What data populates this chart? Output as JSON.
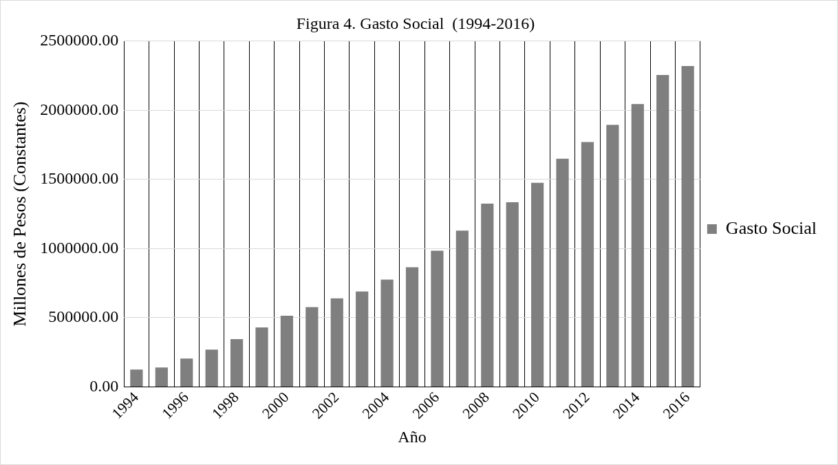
{
  "chart_data": {
    "type": "bar",
    "title": "Figura 4. Gasto Social  (1994-2016)",
    "xlabel": "Año",
    "ylabel": "Millones de Pesos (Constantes)",
    "categories": [
      "1994",
      null,
      "1996",
      null,
      "1998",
      null,
      "2000",
      null,
      "2002",
      null,
      "2004",
      null,
      "2006",
      null,
      "2008",
      null,
      "2010",
      null,
      "2012",
      null,
      "2014",
      null,
      "2016"
    ],
    "series": [
      {
        "name": "Gasto Social",
        "color": "#7f7f7f",
        "values": [
          125000,
          140000,
          205000,
          270000,
          345000,
          430000,
          515000,
          577000,
          640000,
          690000,
          775000,
          865000,
          985000,
          1130000,
          1325000,
          1335000,
          1475000,
          1650000,
          1770000,
          1895000,
          2045000,
          2255000,
          2320000
        ]
      }
    ],
    "ylim": [
      0,
      2500000
    ],
    "yticks": [
      {
        "value": 0,
        "label": "0.00"
      },
      {
        "value": 500000,
        "label": "500000.00"
      },
      {
        "value": 1000000,
        "label": "1000000.00"
      },
      {
        "value": 1500000,
        "label": "1500000.00"
      },
      {
        "value": 2000000,
        "label": "2000000.00"
      },
      {
        "value": 2500000,
        "label": "2500000.00"
      }
    ],
    "grid": true,
    "legend": "right"
  }
}
